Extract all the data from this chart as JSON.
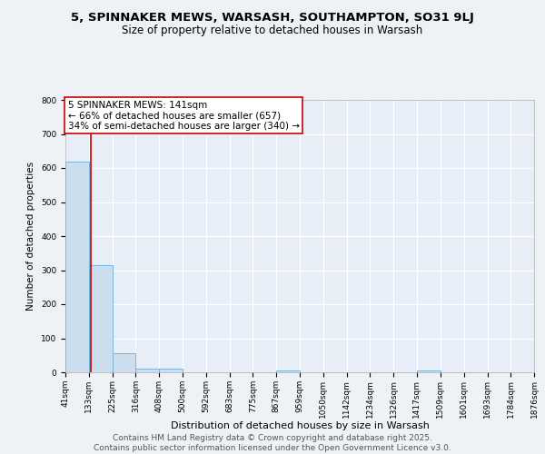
{
  "title": "5, SPINNAKER MEWS, WARSASH, SOUTHAMPTON, SO31 9LJ",
  "subtitle": "Size of property relative to detached houses in Warsash",
  "xlabel": "Distribution of detached houses by size in Warsash",
  "ylabel": "Number of detached properties",
  "bin_labels": [
    "41sqm",
    "133sqm",
    "225sqm",
    "316sqm",
    "408sqm",
    "500sqm",
    "592sqm",
    "683sqm",
    "775sqm",
    "867sqm",
    "959sqm",
    "1050sqm",
    "1142sqm",
    "1234sqm",
    "1326sqm",
    "1417sqm",
    "1509sqm",
    "1601sqm",
    "1693sqm",
    "1784sqm",
    "1876sqm"
  ],
  "bin_edges": [
    41,
    133,
    225,
    316,
    408,
    500,
    592,
    683,
    775,
    867,
    959,
    1050,
    1142,
    1234,
    1326,
    1417,
    1509,
    1601,
    1693,
    1784,
    1876
  ],
  "bar_values": [
    620,
    315,
    55,
    12,
    12,
    0,
    0,
    0,
    0,
    5,
    0,
    0,
    0,
    0,
    0,
    5,
    0,
    0,
    0,
    0
  ],
  "red_line_x": 141,
  "annotation_line1": "5 SPINNAKER MEWS: 141sqm",
  "annotation_line2": "← 66% of detached houses are smaller (657)",
  "annotation_line3": "34% of semi-detached houses are larger (340) →",
  "bar_color": "#ccdded",
  "bar_edge_color": "#6baed6",
  "red_line_color": "#cc0000",
  "background_color": "#eef2f7",
  "plot_bg_color": "#e8eef8",
  "grid_color": "#ffffff",
  "ylim": [
    0,
    800
  ],
  "yticks": [
    0,
    100,
    200,
    300,
    400,
    500,
    600,
    700,
    800
  ],
  "footer_line1": "Contains HM Land Registry data © Crown copyright and database right 2025.",
  "footer_line2": "Contains public sector information licensed under the Open Government Licence v3.0.",
  "title_fontsize": 9.5,
  "subtitle_fontsize": 8.5,
  "ylabel_fontsize": 7.5,
  "xlabel_fontsize": 8,
  "annotation_fontsize": 7.5,
  "tick_fontsize": 6.5,
  "footer_fontsize": 6.5
}
